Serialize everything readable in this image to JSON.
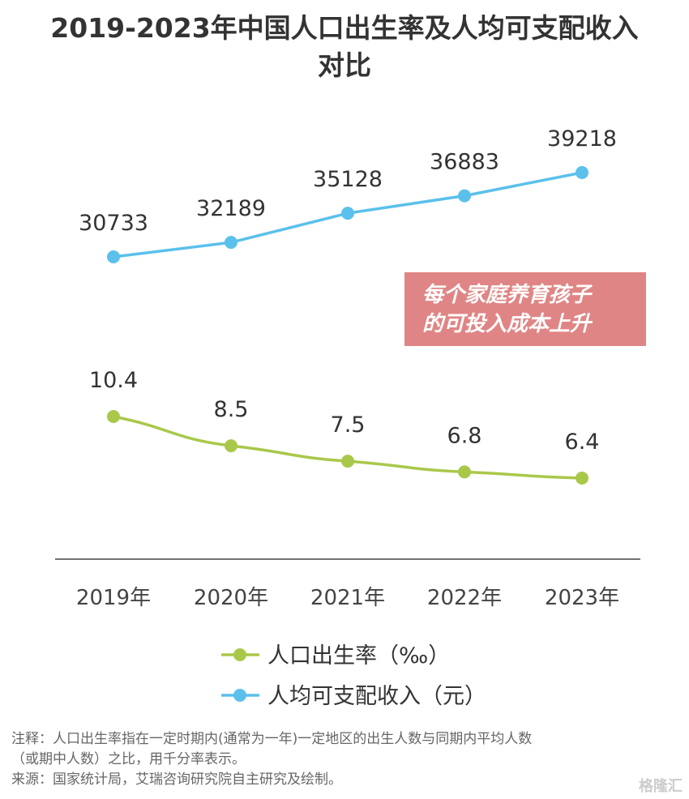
{
  "title_line1": "2019-2023年中国人口出生率及人均可支配收入",
  "title_line2": "对比",
  "chart_data": {
    "type": "line",
    "categories": [
      "2019年",
      "2020年",
      "2021年",
      "2022年",
      "2023年"
    ],
    "series": [
      {
        "name": "人均可支配收入（元）",
        "values": [
          30733,
          32189,
          35128,
          36883,
          39218
        ],
        "color": "#5bc0eb"
      },
      {
        "name": "人口出生率（‰）",
        "values": [
          10.4,
          8.5,
          7.5,
          6.8,
          6.4
        ],
        "color": "#a9c84a"
      }
    ],
    "legend_position": "bottom",
    "grid": false
  },
  "callout": {
    "line1": "每个家庭养育孩子",
    "line2": "的可投入成本上升",
    "color": "#e08585"
  },
  "note": {
    "line1": "注释：人口出生率指在一定时期内(通常为一年)一定地区的出生人数与同期内平均人数",
    "line2": "（或期中人数）之比，用千分率表示。",
    "line3": "来源：国家统计局，艾瑞咨询研究院自主研究及绘制。"
  },
  "watermark": "格隆汇"
}
